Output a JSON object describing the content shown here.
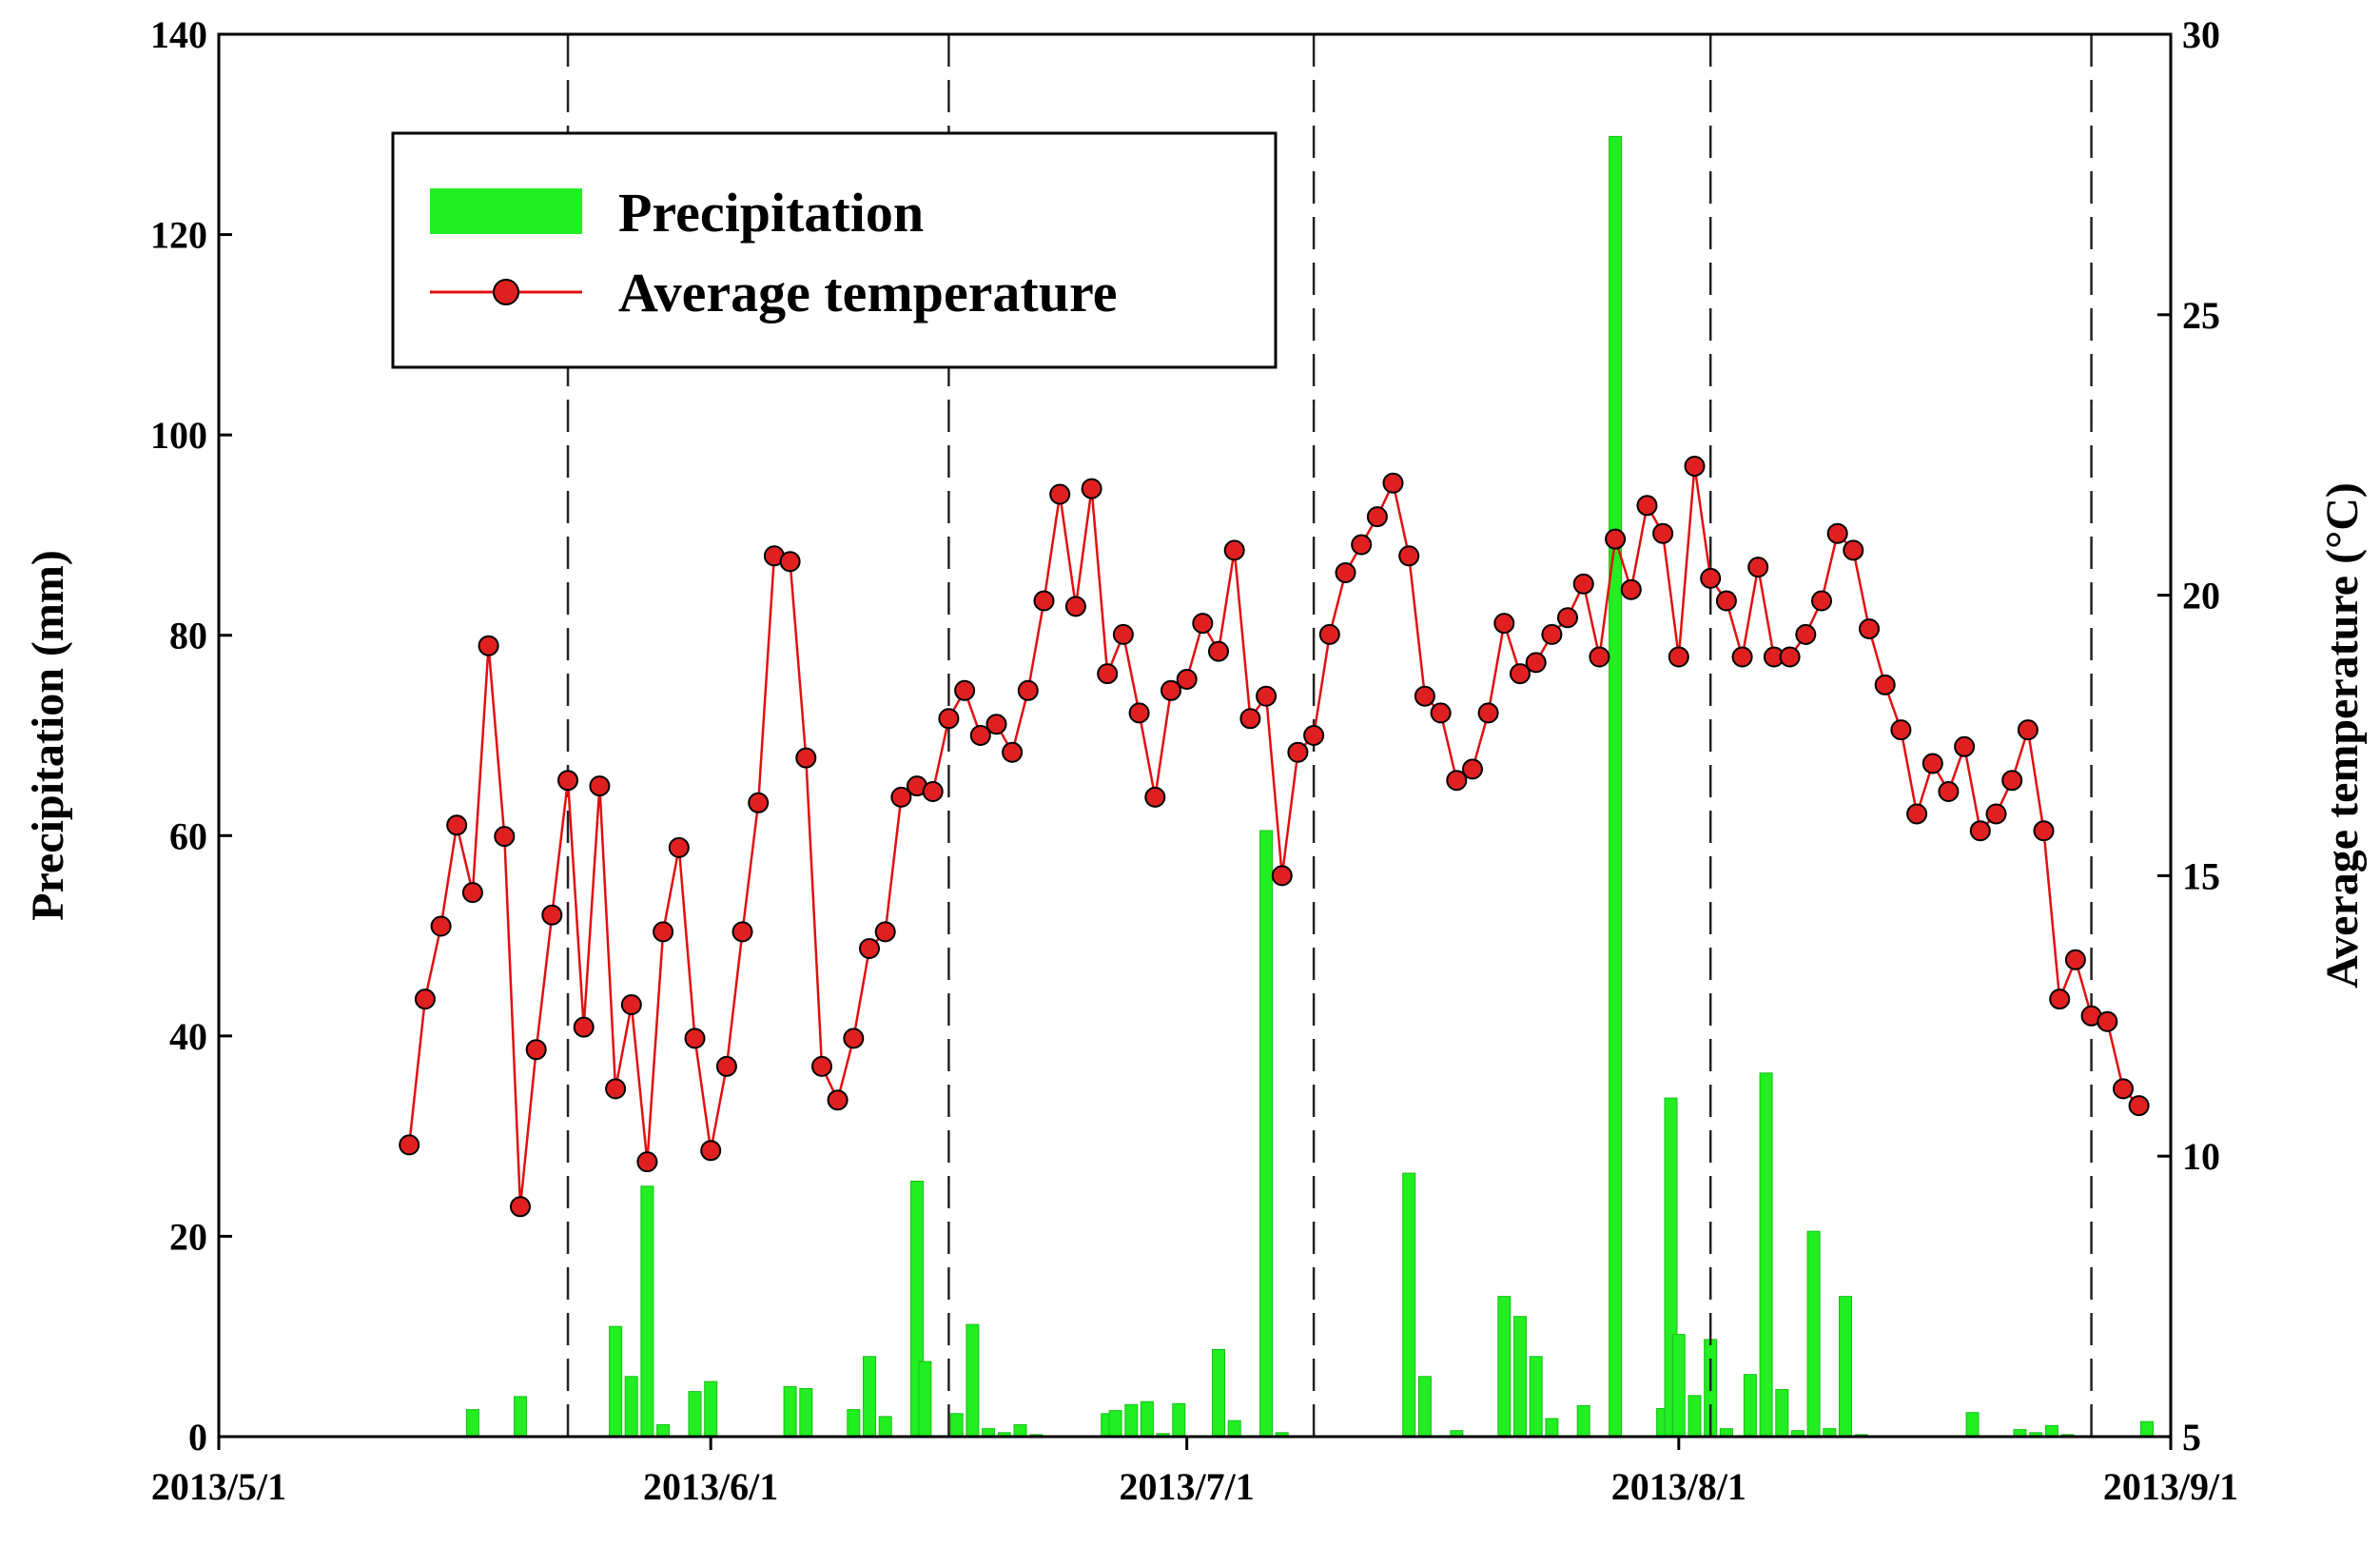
{
  "chart_data": {
    "type": "bar+line",
    "x_axis": {
      "start_day": 0,
      "end_day": 123,
      "ticks": [
        {
          "day": 0,
          "label": "2013/5/1"
        },
        {
          "day": 31,
          "label": "2013/6/1"
        },
        {
          "day": 61,
          "label": "2013/7/1"
        },
        {
          "day": 92,
          "label": "2013/8/1"
        },
        {
          "day": 123,
          "label": "2013/9/1"
        }
      ]
    },
    "y_left": {
      "title": "Precipitation (mm)",
      "min": 0,
      "max": 140,
      "ticks": [
        0,
        20,
        40,
        60,
        80,
        100,
        120,
        140
      ]
    },
    "y_right": {
      "title": "Average temperature (°C)",
      "min": 5,
      "max": 30,
      "ticks": [
        5,
        10,
        15,
        20,
        25,
        30
      ]
    },
    "stage_dividers_day": [
      22,
      46,
      69,
      94,
      118
    ],
    "legend": [
      {
        "key": "precip",
        "label": "Precipitation"
      },
      {
        "key": "temp",
        "label": "Average temperature"
      }
    ],
    "colors": {
      "precip": "#22ee22",
      "temp_line": "#e01010",
      "temp_marker": "#e02020"
    },
    "series": [
      {
        "name": "Precipitation",
        "type": "bar",
        "axis": "left",
        "days": [
          16,
          19,
          25,
          26,
          27,
          28,
          30,
          31,
          36,
          37,
          40,
          41,
          42,
          44,
          44.5,
          46.5,
          47.5,
          48.5,
          49.5,
          50.5,
          51.5,
          56,
          56.5,
          57.5,
          58.5,
          59.5,
          60.5,
          63,
          64,
          66,
          67,
          75,
          76,
          78,
          81,
          82,
          83,
          84,
          86,
          88,
          91,
          91.5,
          92,
          93,
          94,
          95,
          96.5,
          97.5,
          98.5,
          99.5,
          100.5,
          101.5,
          102.5,
          103.5,
          110.5,
          113.5,
          114.5,
          115.5,
          116.5,
          121.5
        ],
        "values": [
          2.7,
          4,
          11,
          6,
          25,
          1.2,
          4.5,
          5.5,
          5,
          4.8,
          2.7,
          8,
          2,
          25.5,
          7.5,
          2.3,
          11.2,
          0.8,
          0.4,
          1.2,
          0.2,
          2.3,
          2.6,
          3.2,
          3.5,
          0.3,
          3.3,
          8.7,
          1.6,
          60.5,
          0.4,
          26.3,
          6,
          0.6,
          14,
          12,
          8,
          1.8,
          3.1,
          129.8,
          2.8,
          33.8,
          10.2,
          4.1,
          9.7,
          0.8,
          6.2,
          36.3,
          4.7,
          0.6,
          20.5,
          0.8,
          14,
          0.2,
          2.4,
          0.7,
          0.4,
          1.1,
          0.2,
          1.5
        ]
      },
      {
        "name": "Average temperature",
        "type": "line",
        "axis": "right",
        "days": [
          12,
          13,
          14,
          15,
          16,
          17,
          18,
          19,
          20,
          21,
          22,
          23,
          24,
          25,
          26,
          27,
          28,
          29,
          30,
          31,
          32,
          33,
          34,
          35,
          36,
          37,
          38,
          39,
          40,
          41,
          42,
          43,
          44,
          45,
          46,
          47,
          48,
          49,
          50,
          51,
          52,
          53,
          54,
          55,
          56,
          57,
          58,
          59,
          60,
          61,
          62,
          63,
          64,
          65,
          66,
          67,
          68,
          69,
          70,
          71,
          72,
          73,
          74,
          75,
          76,
          77,
          78,
          79,
          80,
          81,
          82,
          83,
          84,
          85,
          86,
          87,
          88,
          89,
          90,
          91,
          92,
          93,
          94,
          95,
          96,
          97,
          98,
          99,
          100,
          101,
          102,
          103,
          104,
          105,
          106,
          107,
          108,
          109,
          110,
          111,
          112,
          113,
          114,
          115,
          116,
          117,
          118,
          119,
          120,
          121
        ],
        "values": [
          10.2,
          12.8,
          14.1,
          15.9,
          14.7,
          19.1,
          15.7,
          9.1,
          11.9,
          14.3,
          16.7,
          12.3,
          16.6,
          11.2,
          12.7,
          9.9,
          14,
          15.5,
          12.1,
          10.1,
          11.6,
          14,
          16.3,
          20.7,
          20.6,
          17.1,
          11.6,
          11,
          12.1,
          13.7,
          14,
          16.4,
          16.6,
          16.5,
          17.8,
          18.3,
          17.5,
          17.7,
          17.2,
          18.3,
          19.9,
          21.8,
          19.8,
          21.9,
          18.6,
          19.3,
          17.9,
          16.4,
          18.3,
          18.5,
          19.5,
          19,
          20.8,
          17.8,
          18.2,
          15,
          17.2,
          17.5,
          19.3,
          20.4,
          20.9,
          21.4,
          22,
          20.7,
          18.2,
          17.9,
          16.7,
          16.9,
          17.9,
          19.5,
          18.6,
          18.8,
          19.3,
          19.6,
          20.2,
          18.9,
          21,
          20.1,
          21.6,
          21.1,
          18.9,
          22.3,
          20.3,
          19.9,
          18.9,
          20.5,
          18.9,
          18.9,
          19.3,
          19.9,
          21.1,
          20.8,
          19.4,
          18.4,
          17.6,
          16.1,
          17,
          16.5,
          17.3,
          15.8,
          16.1,
          16.7,
          17.6,
          15.8,
          12.8,
          13.5,
          12.5,
          12.4,
          11.2,
          10.9
        ]
      }
    ]
  }
}
